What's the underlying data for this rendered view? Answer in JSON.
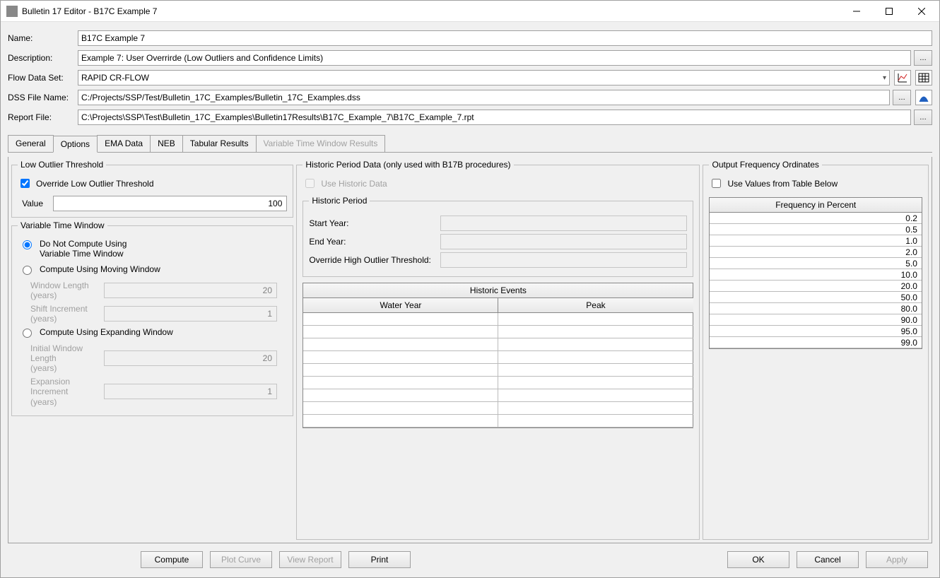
{
  "window": {
    "title": "Bulletin 17 Editor - B17C Example 7"
  },
  "form": {
    "name_label": "Name:",
    "name_value": "B17C Example 7",
    "desc_label": "Description:",
    "desc_value": "Example 7: User Overrirde (Low Outliers and Confidence Limits)",
    "flow_label": "Flow Data Set:",
    "flow_value": "RAPID CR-FLOW",
    "dss_label": "DSS File Name:",
    "dss_value": "C:/Projects/SSP/Test/Bulletin_17C_Examples/Bulletin_17C_Examples.dss",
    "report_label": "Report File:",
    "report_value": "C:\\Projects\\SSP\\Test\\Bulletin_17C_Examples\\Bulletin17Results\\B17C_Example_7\\B17C_Example_7.rpt"
  },
  "tabs": [
    "General",
    "Options",
    "EMA Data",
    "NEB",
    "Tabular Results",
    "Variable Time Window Results"
  ],
  "active_tab": 1,
  "disabled_tabs": [
    5
  ],
  "low_outlier": {
    "legend": "Low Outlier Threshold",
    "override_label": "Override Low Outlier Threshold",
    "override_checked": true,
    "value_label": "Value",
    "value": "100"
  },
  "vtw": {
    "legend": "Variable Time Window",
    "opt1": "Do Not Compute Using\nVariable Time Window",
    "opt2": "Compute Using Moving Window",
    "opt3": "Compute Using Expanding Window",
    "selected": 0,
    "window_length_label": "Window Length\n(years)",
    "window_length": "20",
    "shift_inc_label": "Shift Increment\n(years)",
    "shift_inc": "1",
    "initial_length_label": "Initial Window Length\n(years)",
    "initial_length": "20",
    "expansion_inc_label": "Expansion Increment\n(years)",
    "expansion_inc": "1"
  },
  "historic": {
    "legend": "Historic Period Data (only used with B17B procedures)",
    "use_label": "Use Historic Data",
    "use_checked": false,
    "period_legend": "Historic Period",
    "start_label": "Start Year:",
    "end_label": "End Year:",
    "override_label": "Override High Outlier Threshold:",
    "grid_title": "Historic Events",
    "col1": "Water Year",
    "col2": "Peak",
    "blank_rows": 9
  },
  "output_freq": {
    "legend": "Output Frequency Ordinates",
    "use_label": "Use Values from Table Below",
    "use_checked": false,
    "header": "Frequency in Percent",
    "values": [
      "0.2",
      "0.5",
      "1.0",
      "2.0",
      "5.0",
      "10.0",
      "20.0",
      "50.0",
      "80.0",
      "90.0",
      "95.0",
      "99.0"
    ]
  },
  "buttons": {
    "compute": "Compute",
    "plot": "Plot Curve",
    "view": "View Report",
    "print": "Print",
    "ok": "OK",
    "cancel": "Cancel",
    "apply": "Apply"
  },
  "colors": {
    "accent_red": "#d02020",
    "accent_blue": "#2060c0"
  }
}
